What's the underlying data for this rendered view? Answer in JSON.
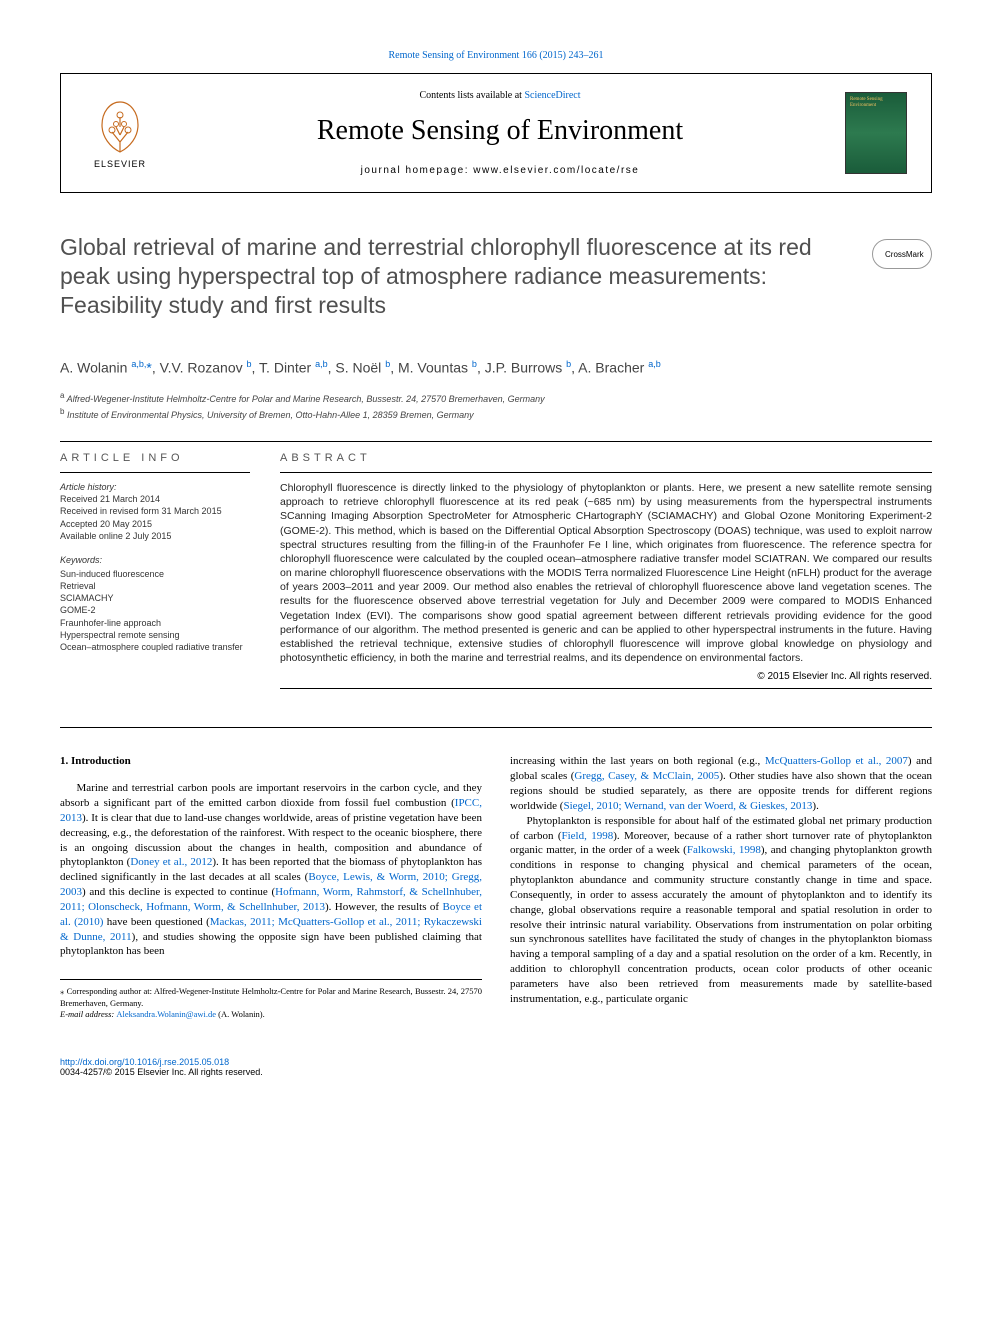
{
  "top_link": "Remote Sensing of Environment 166 (2015) 243–261",
  "header": {
    "contents_text": "Contents lists available at ",
    "contents_link": "ScienceDirect",
    "journal": "Remote Sensing of Environment",
    "homepage": "journal homepage: www.elsevier.com/locate/rse",
    "publisher": "ELSEVIER",
    "cover_text": "Remote Sensing Environment"
  },
  "crossmark_label": "CrossMark",
  "title": "Global retrieval of marine and terrestrial chlorophyll fluorescence at its red peak using hyperspectral top of atmosphere radiance measurements: Feasibility study and first results",
  "authors_html": "A. Wolanin <sup><a>a,b,</a></sup><a>*</a>, V.V. Rozanov <sup><a>b</a></sup>, T. Dinter <sup><a>a,b</a></sup>, S. Noël <sup><a>b</a></sup>, M. Vountas <sup><a>b</a></sup>, J.P. Burrows <sup><a>b</a></sup>, A. Bracher <sup><a>a,b</a></sup>",
  "affiliations": {
    "a": "Alfred-Wegener-Institute Helmholtz-Centre for Polar and Marine Research, Bussestr. 24, 27570 Bremerhaven, Germany",
    "b": "Institute of Environmental Physics, University of Bremen, Otto-Hahn-Allee 1, 28359 Bremen, Germany"
  },
  "article_info": {
    "label": "ARTICLE INFO",
    "history_label": "Article history:",
    "received": "Received 21 March 2014",
    "revised": "Received in revised form 31 March 2015",
    "accepted": "Accepted 20 May 2015",
    "online": "Available online 2 July 2015",
    "keywords_label": "Keywords:",
    "keywords": [
      "Sun-induced fluorescence",
      "Retrieval",
      "SCIAMACHY",
      "GOME-2",
      "Fraunhofer-line approach",
      "Hyperspectral remote sensing",
      "Ocean–atmosphere coupled radiative transfer"
    ]
  },
  "abstract": {
    "label": "ABSTRACT",
    "text": "Chlorophyll fluorescence is directly linked to the physiology of phytoplankton or plants. Here, we present a new satellite remote sensing approach to retrieve chlorophyll fluorescence at its red peak (~685 nm) by using measurements from the hyperspectral instruments SCanning Imaging Absorption SpectroMeter for Atmospheric CHartographY (SCIAMACHY) and Global Ozone Monitoring Experiment-2 (GOME-2). This method, which is based on the Differential Optical Absorption Spectroscopy (DOAS) technique, was used to exploit narrow spectral structures resulting from the filling-in of the Fraunhofer Fe I line, which originates from fluorescence. The reference spectra for chlorophyll fluorescence were calculated by the coupled ocean–atmosphere radiative transfer model SCIATRAN. We compared our results on marine chlorophyll fluorescence observations with the MODIS Terra normalized Fluorescence Line Height (nFLH) product for the average of years 2003–2011 and year 2009. Our method also enables the retrieval of chlorophyll fluorescence above land vegetation scenes. The results for the fluorescence observed above terrestrial vegetation for July and December 2009 were compared to MODIS Enhanced Vegetation Index (EVI). The comparisons show good spatial agreement between different retrievals providing evidence for the good performance of our algorithm. The method presented is generic and can be applied to other hyperspectral instruments in the future. Having established the retrieval technique, extensive studies of chlorophyll fluorescence will improve global knowledge on physiology and photosynthetic efficiency, in both the marine and terrestrial realms, and its dependence on environmental factors.",
    "copyright": "© 2015 Elsevier Inc. All rights reserved."
  },
  "body": {
    "heading": "1. Introduction",
    "col1_p1_a": "Marine and terrestrial carbon pools are important reservoirs in the carbon cycle, and they absorb a significant part of the emitted carbon dioxide from fossil fuel combustion (",
    "col1_p1_b": "IPCC, 2013",
    "col1_p1_c": "). It is clear that due to land-use changes worldwide, areas of pristine vegetation have been decreasing, e.g., the deforestation of the rainforest. With respect to the oceanic biosphere, there is an ongoing discussion about the changes in health, composition and abundance of phytoplankton (",
    "col1_p1_d": "Doney et al., 2012",
    "col1_p1_e": "). It has been reported that the biomass of phytoplankton has declined significantly in the last decades at all scales (",
    "col1_p1_f": "Boyce, Lewis, & Worm, 2010; Gregg, 2003",
    "col1_p1_g": ") and this decline is expected to continue (",
    "col1_p1_h": "Hofmann, Worm, Rahmstorf, & Schellnhuber, 2011; Olonscheck, Hofmann, Worm, & Schellnhuber, 2013",
    "col1_p1_i": "). However, the results of ",
    "col1_p1_j": "Boyce et al. (2010)",
    "col1_p1_k": " have been questioned (",
    "col1_p1_l": "Mackas, 2011; McQuatters-Gollop et al., 2011; Rykaczewski & Dunne, 2011",
    "col1_p1_m": "), and studies showing the opposite sign have been published claiming that phytoplankton has been",
    "col2_p1_a": "increasing within the last years on both regional (e.g., ",
    "col2_p1_b": "McQuatters-Gollop et al., 2007",
    "col2_p1_c": ") and global scales (",
    "col2_p1_d": "Gregg, Casey, & McClain, 2005",
    "col2_p1_e": "). Other studies have also shown that the ocean regions should be studied separately, as there are opposite trends for different regions worldwide (",
    "col2_p1_f": "Siegel, 2010; Wernand, van der Woerd, & Gieskes, 2013",
    "col2_p1_g": ").",
    "col2_p2_a": "Phytoplankton is responsible for about half of the estimated global net primary production of carbon (",
    "col2_p2_b": "Field, 1998",
    "col2_p2_c": "). Moreover, because of a rather short turnover rate of phytoplankton organic matter, in the order of a week (",
    "col2_p2_d": "Falkowski, 1998",
    "col2_p2_e": "), and changing phytoplankton growth conditions in response to changing physical and chemical parameters of the ocean, phytoplankton abundance and community structure constantly change in time and space. Consequently, in order to assess accurately the amount of phytoplankton and to identify its change, global observations require a reasonable temporal and spatial resolution in order to resolve their intrinsic natural variability. Observations from instrumentation on polar orbiting sun synchronous satellites have facilitated the study of changes in the phytoplankton biomass having a temporal sampling of a day and a spatial resolution on the order of a km. Recently, in addition to chlorophyll concentration products, ocean color products of other oceanic parameters have also been retrieved from measurements made by satellite-based instrumentation, e.g., particulate organic"
  },
  "footnotes": {
    "corr_label": "⁎ Corresponding author at: Alfred-Wegener-Institute Helmholtz-Centre for Polar and Marine Research, Bussestr. 24, 27570 Bremerhaven, Germany.",
    "email_label": "E-mail address: ",
    "email": "Aleksandra.Wolanin@awi.de",
    "email_attr": " (A. Wolanin)."
  },
  "footer": {
    "doi": "http://dx.doi.org/10.1016/j.rse.2015.05.018",
    "issn": "0034-4257/© 2015 Elsevier Inc. All rights reserved."
  },
  "colors": {
    "link": "#0066cc",
    "text": "#000000",
    "title_gray": "#505050"
  }
}
